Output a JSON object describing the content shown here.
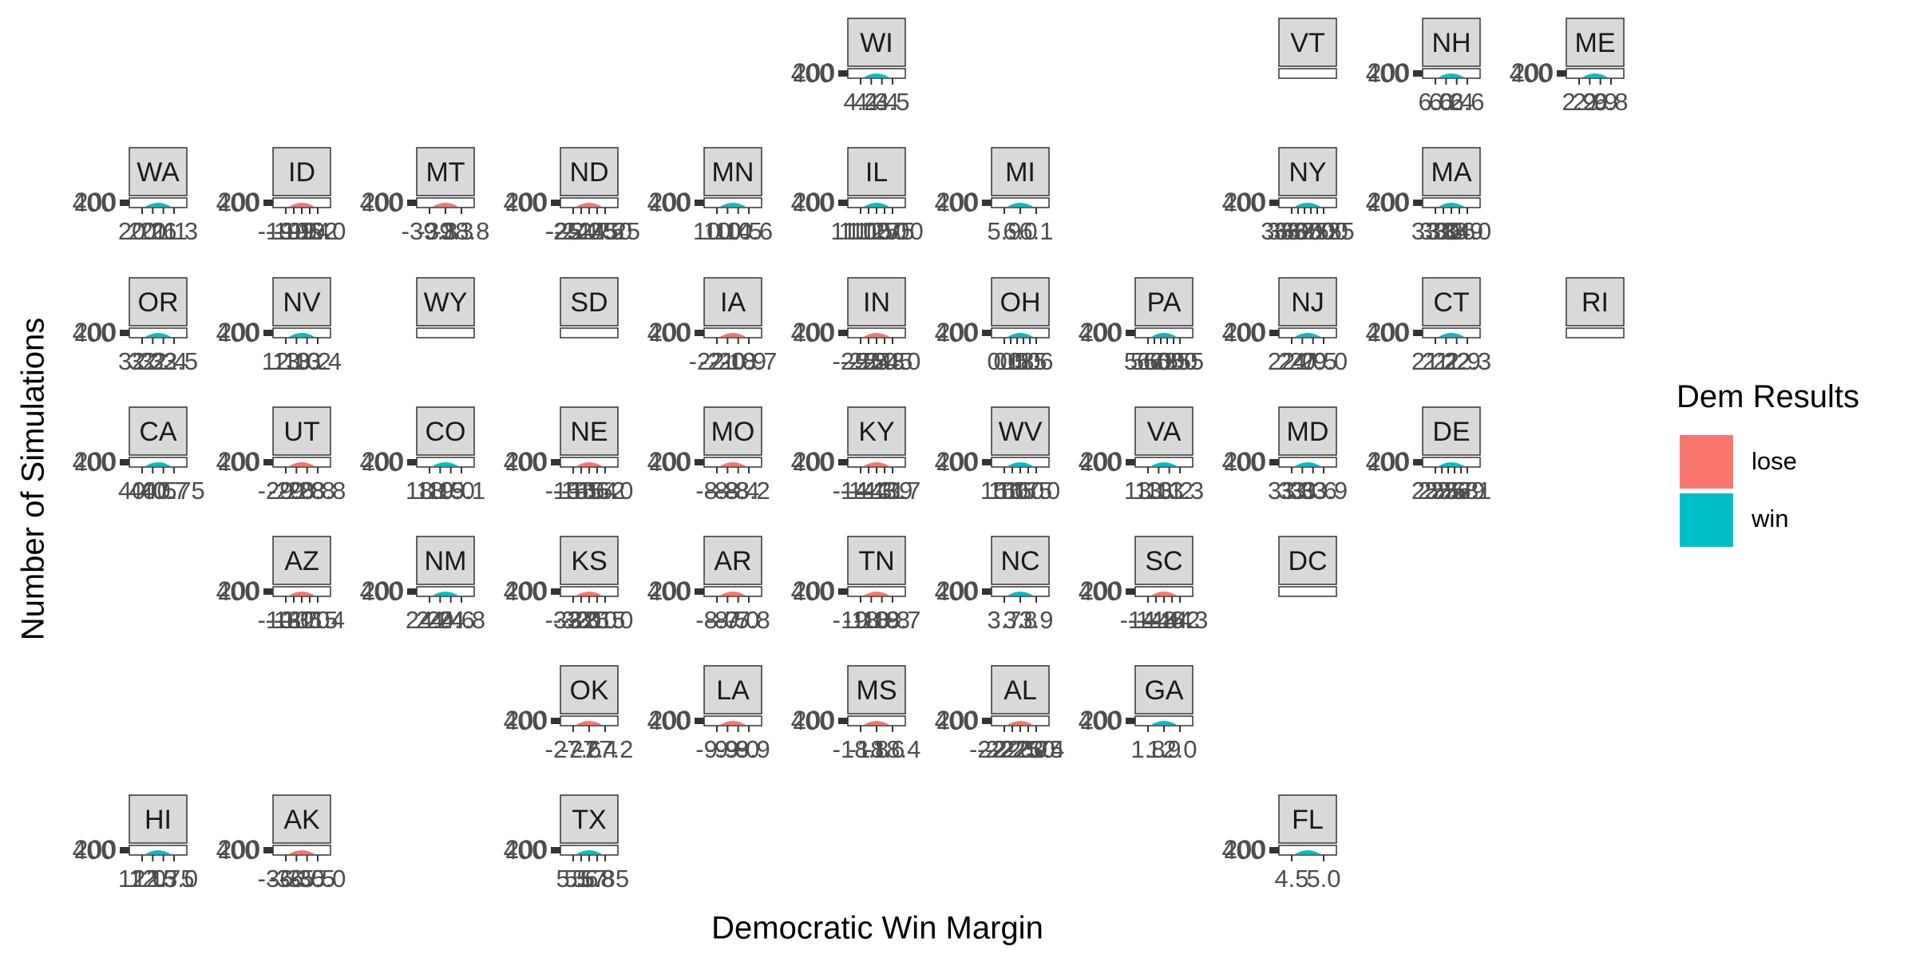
{
  "colors": {
    "lose": "#F8766D",
    "win": "#00BFC4"
  },
  "chart_data": {
    "type": "facet-density",
    "facet_layout": "us-state-grid",
    "xlabel": "Democratic Win Margin",
    "ylabel": "Number of Simulations",
    "legend": {
      "title": "Dem Results",
      "position": "right",
      "entries": [
        "lose",
        "win"
      ]
    },
    "grid": false,
    "panels": [
      {
        "state": "WI",
        "row": 0,
        "col": 5,
        "result": "win",
        "y_tick_labels": [
          "200",
          "400"
        ],
        "x_tick_labels": [
          "4.2",
          "4.3",
          "4.4",
          "4.5"
        ]
      },
      {
        "state": "VT",
        "row": 0,
        "col": 8,
        "empty": true
      },
      {
        "state": "NH",
        "row": 0,
        "col": 9,
        "result": "win",
        "y_tick_labels": [
          "200",
          "400"
        ],
        "x_tick_labels": [
          "6.0",
          "6.2",
          "6.4",
          "6.6"
        ]
      },
      {
        "state": "ME",
        "row": 0,
        "col": 10,
        "result": "win",
        "y_tick_labels": [
          "200",
          "400"
        ],
        "x_tick_labels": [
          "2.9",
          "2.9",
          "2.9",
          "6.8"
        ]
      },
      {
        "state": "WA",
        "row": 1,
        "col": 0,
        "result": "win",
        "y_tick_labels": [
          "200",
          "400"
        ],
        "x_tick_labels": [
          "20.0",
          "20.6",
          "21.1",
          "21.3"
        ]
      },
      {
        "state": "ID",
        "row": 1,
        "col": 1,
        "result": "lose",
        "y_tick_labels": [
          "200",
          "400"
        ],
        "x_tick_labels": [
          "-19.9",
          "-19.6",
          "-19.4",
          "-19.2",
          "-19.0"
        ]
      },
      {
        "state": "MT",
        "row": 1,
        "col": 2,
        "result": "lose",
        "y_tick_labels": [
          "200",
          "400"
        ],
        "x_tick_labels": [
          "-39.8",
          "-39.3",
          "-38.8"
        ]
      },
      {
        "state": "ND",
        "row": 1,
        "col": 3,
        "result": "lose",
        "y_tick_labels": [
          "200",
          "400"
        ],
        "x_tick_labels": [
          "-25.0",
          "-25.25",
          "-24.75",
          "-24.50",
          "-24.25"
        ]
      },
      {
        "state": "MN",
        "row": 1,
        "col": 4,
        "result": "win",
        "y_tick_labels": [
          "200",
          "400"
        ],
        "x_tick_labels": [
          "10.0",
          "10.4",
          "10.5",
          "10.6"
        ]
      },
      {
        "state": "IL",
        "row": 1,
        "col": 5,
        "result": "win",
        "y_tick_labels": [
          "200",
          "400"
        ],
        "x_tick_labels": [
          "11.00",
          "11.25",
          "11.50",
          "11.75",
          "12.00"
        ]
      },
      {
        "state": "MI",
        "row": 1,
        "col": 6,
        "result": "win",
        "y_tick_labels": [
          "200",
          "400"
        ],
        "x_tick_labels": [
          "5.9",
          "6.0",
          "6.1"
        ]
      },
      {
        "state": "NY",
        "row": 1,
        "col": 8,
        "result": "win",
        "y_tick_labels": [
          "200",
          "400"
        ],
        "x_tick_labels": [
          "36.00",
          "36.25",
          "36.50",
          "36.75",
          "37.00",
          "37.25"
        ]
      },
      {
        "state": "MA",
        "row": 1,
        "col": 9,
        "result": "win",
        "y_tick_labels": [
          "200",
          "400"
        ],
        "x_tick_labels": [
          "33.0",
          "33.3",
          "33.6",
          "33.9",
          "34.0"
        ]
      },
      {
        "state": "OR",
        "row": 2,
        "col": 0,
        "result": "win",
        "y_tick_labels": [
          "200",
          "400"
        ],
        "x_tick_labels": [
          "32.2",
          "32.3",
          "32.4",
          "32.5"
        ]
      },
      {
        "state": "NV",
        "row": 2,
        "col": 1,
        "result": "win",
        "y_tick_labels": [
          "200",
          "400"
        ],
        "x_tick_labels": [
          "12.0",
          "13.0",
          "13.2",
          "13.4"
        ]
      },
      {
        "state": "WY",
        "row": 2,
        "col": 2,
        "empty": true
      },
      {
        "state": "SD",
        "row": 2,
        "col": 3,
        "empty": true
      },
      {
        "state": "IA",
        "row": 2,
        "col": 4,
        "result": "lose",
        "y_tick_labels": [
          "200",
          "400"
        ],
        "x_tick_labels": [
          "-22.0",
          "-21.0",
          "-20.9",
          "-18.7"
        ]
      },
      {
        "state": "IN",
        "row": 2,
        "col": 5,
        "result": "lose",
        "y_tick_labels": [
          "200",
          "400"
        ],
        "x_tick_labels": [
          "-25.5",
          "-25.0",
          "-25.3",
          "-24.5",
          "-24.0"
        ]
      },
      {
        "state": "OH",
        "row": 2,
        "col": 6,
        "result": "win",
        "y_tick_labels": [
          "200",
          "400"
        ],
        "x_tick_labels": [
          "0.0",
          "0.5",
          "0.8",
          "1.0",
          "1.5",
          "1.6"
        ]
      },
      {
        "state": "PA",
        "row": 2,
        "col": 7,
        "result": "win",
        "y_tick_labels": [
          "200",
          "400"
        ],
        "x_tick_labels": [
          "5.50",
          "5.75",
          "6.00",
          "6.25",
          "6.50",
          "6.55"
        ]
      },
      {
        "state": "NJ",
        "row": 2,
        "col": 8,
        "result": "win",
        "y_tick_labels": [
          "200",
          "400"
        ],
        "x_tick_labels": [
          "22.0",
          "24.0",
          "27.5",
          "29.0"
        ]
      },
      {
        "state": "CT",
        "row": 2,
        "col": 9,
        "result": "win",
        "y_tick_labels": [
          "200",
          "400"
        ],
        "x_tick_labels": [
          "21.2",
          "21.2",
          "21.9",
          "22.3"
        ]
      },
      {
        "state": "RI",
        "row": 2,
        "col": 10,
        "empty": true
      },
      {
        "state": "CA",
        "row": 3,
        "col": 0,
        "result": "win",
        "y_tick_labels": [
          "200",
          "400"
        ],
        "x_tick_labels": [
          "40.0",
          "40.5",
          "40.7",
          "40.75"
        ]
      },
      {
        "state": "UT",
        "row": 3,
        "col": 1,
        "result": "lose",
        "y_tick_labels": [
          "200",
          "400"
        ],
        "x_tick_labels": [
          "-29.0",
          "-29.8",
          "-28.8",
          "-28.8"
        ]
      },
      {
        "state": "CO",
        "row": 3,
        "col": 2,
        "result": "win",
        "y_tick_labels": [
          "200",
          "400"
        ],
        "x_tick_labels": [
          "18.0",
          "18.5",
          "19.0",
          "19.1"
        ]
      },
      {
        "state": "NE",
        "row": 3,
        "col": 3,
        "result": "lose",
        "y_tick_labels": [
          "200",
          "400"
        ],
        "x_tick_labels": [
          "-15.5",
          "-15.6",
          "-15.4",
          "-15.2",
          "-15.0"
        ]
      },
      {
        "state": "MO",
        "row": 3,
        "col": 4,
        "result": "lose",
        "y_tick_labels": [
          "200",
          "400"
        ],
        "x_tick_labels": [
          "-8.8",
          "-8.8",
          "-8.4",
          "-8.2"
        ]
      },
      {
        "state": "KY",
        "row": 3,
        "col": 5,
        "result": "lose",
        "y_tick_labels": [
          "200",
          "400"
        ],
        "x_tick_labels": [
          "-14.4",
          "-14.3",
          "-14.1",
          "-13.9",
          "-13.7"
        ]
      },
      {
        "state": "WV",
        "row": 3,
        "col": 6,
        "result": "win",
        "y_tick_labels": [
          "200",
          "400"
        ],
        "x_tick_labels": [
          "15.0",
          "15.5",
          "16.0",
          "16.5",
          "17.0"
        ]
      },
      {
        "state": "VA",
        "row": 3,
        "col": 7,
        "result": "win",
        "y_tick_labels": [
          "200",
          "400"
        ],
        "x_tick_labels": [
          "13.0",
          "13.1",
          "13.2",
          "13.3"
        ]
      },
      {
        "state": "MD",
        "row": 3,
        "col": 8,
        "result": "win",
        "y_tick_labels": [
          "200",
          "400"
        ],
        "x_tick_labels": [
          "33.0",
          "33.3",
          "33.6",
          "33.9"
        ]
      },
      {
        "state": "DE",
        "row": 3,
        "col": 9,
        "result": "win",
        "y_tick_labels": [
          "200",
          "400"
        ],
        "x_tick_labels": [
          "25.5",
          "25.6",
          "25.7",
          "25.8",
          "25.9",
          "26.1"
        ]
      },
      {
        "state": "AZ",
        "row": 4,
        "col": 1,
        "result": "lose",
        "y_tick_labels": [
          "200",
          "400"
        ],
        "x_tick_labels": [
          "-10.0",
          "-13.5",
          "-13.0",
          "-12.5",
          "-11.4"
        ]
      },
      {
        "state": "NM",
        "row": 4,
        "col": 2,
        "result": "win",
        "y_tick_labels": [
          "200",
          "400"
        ],
        "x_tick_labels": [
          "24.0",
          "24.4",
          "24.6",
          "24.8"
        ]
      },
      {
        "state": "KS",
        "row": 4,
        "col": 3,
        "result": "lose",
        "y_tick_labels": [
          "200",
          "400"
        ],
        "x_tick_labels": [
          "-33.0",
          "-32.5",
          "-32.0",
          "-31.5",
          "-31.0"
        ]
      },
      {
        "state": "AR",
        "row": 4,
        "col": 4,
        "result": "lose",
        "y_tick_labels": [
          "200",
          "400"
        ],
        "x_tick_labels": [
          "-8.0",
          "-8.5",
          "-7.0",
          "-7.8"
        ]
      },
      {
        "state": "TN",
        "row": 4,
        "col": 5,
        "result": "lose",
        "y_tick_labels": [
          "200",
          "400"
        ],
        "x_tick_labels": [
          "-19.0",
          "-18.9",
          "-18.8",
          "-18.7"
        ]
      },
      {
        "state": "NC",
        "row": 4,
        "col": 6,
        "result": "win",
        "y_tick_labels": [
          "200",
          "400"
        ],
        "x_tick_labels": [
          "3.7",
          "3.8",
          "3.9"
        ]
      },
      {
        "state": "SC",
        "row": 4,
        "col": 7,
        "result": "lose",
        "y_tick_labels": [
          "200",
          "400"
        ],
        "x_tick_labels": [
          "-14.8",
          "-14.6",
          "-14.4",
          "-14.2",
          "-14.3"
        ]
      },
      {
        "state": "DC",
        "row": 4,
        "col": 8,
        "empty": true
      },
      {
        "state": "OK",
        "row": 5,
        "col": 3,
        "result": "lose",
        "y_tick_labels": [
          "200",
          "400"
        ],
        "x_tick_labels": [
          "-27.6",
          "-27.4",
          "-27.2"
        ]
      },
      {
        "state": "LA",
        "row": 5,
        "col": 4,
        "result": "lose",
        "y_tick_labels": [
          "200",
          "400"
        ],
        "x_tick_labels": [
          "-9.9",
          "-9.8",
          "-9.0",
          "-9.9"
        ]
      },
      {
        "state": "MS",
        "row": 5,
        "col": 5,
        "result": "lose",
        "y_tick_labels": [
          "200",
          "400"
        ],
        "x_tick_labels": [
          "-18.8",
          "-18.6",
          "-18.4"
        ]
      },
      {
        "state": "AL",
        "row": 5,
        "col": 6,
        "result": "lose",
        "y_tick_labels": [
          "200",
          "400"
        ],
        "x_tick_labels": [
          "-22.25",
          "-22.00",
          "-22.50",
          "-22.75",
          "-23.4"
        ]
      },
      {
        "state": "GA",
        "row": 5,
        "col": 7,
        "result": "win",
        "y_tick_labels": [
          "200",
          "400"
        ],
        "x_tick_labels": [
          "1.8",
          "1.9",
          "2.0"
        ]
      },
      {
        "state": "HI",
        "row": 6,
        "col": 0,
        "result": "win",
        "y_tick_labels": [
          "200",
          "400"
        ],
        "x_tick_labels": [
          "12.0",
          "12.5",
          "12.75",
          "13.0"
        ]
      },
      {
        "state": "AK",
        "row": 6,
        "col": 1,
        "result": "lose",
        "y_tick_labels": [
          "200",
          "400"
        ],
        "x_tick_labels": [
          "-36.5",
          "-36.0",
          "-35.5",
          "-35.0"
        ]
      },
      {
        "state": "TX",
        "row": 6,
        "col": 3,
        "result": "win",
        "y_tick_labels": [
          "200",
          "400"
        ],
        "x_tick_labels": [
          "5.5",
          "5.6",
          "5.7",
          "5.8",
          "5.85"
        ]
      },
      {
        "state": "FL",
        "row": 6,
        "col": 8,
        "result": "win",
        "y_tick_labels": [
          "200",
          "400"
        ],
        "x_tick_labels": [
          "4.5",
          "5.0"
        ]
      }
    ]
  }
}
